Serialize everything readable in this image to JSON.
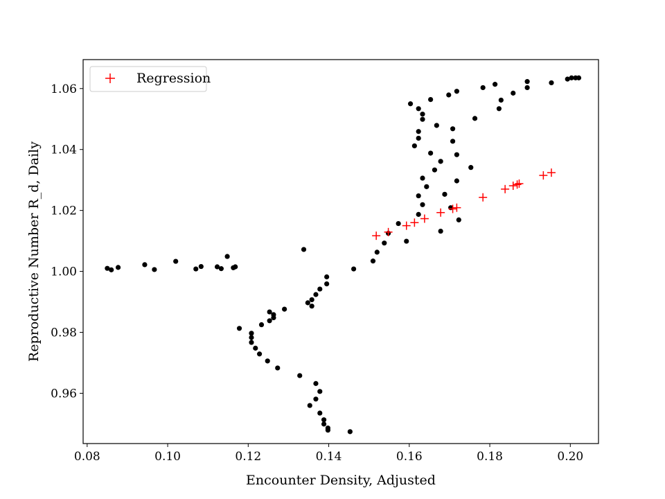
{
  "chart_data": {
    "type": "scatter",
    "title": "",
    "xlabel": "Encounter Density, Adjusted",
    "ylabel": "Reproductive Number R_d, Daily",
    "xlim": [
      0.079,
      0.207
    ],
    "ylim": [
      0.9435,
      1.0695
    ],
    "xticks": [
      0.08,
      0.1,
      0.12,
      0.14,
      0.16,
      0.18,
      0.2
    ],
    "xtick_labels": [
      "0.08",
      "0.10",
      "0.12",
      "0.14",
      "0.16",
      "0.18",
      "0.20"
    ],
    "yticks": [
      0.96,
      0.98,
      1.0,
      1.02,
      1.04,
      1.06
    ],
    "ytick_labels": [
      "0.96",
      "0.98",
      "1.00",
      "1.02",
      "1.04",
      "1.06"
    ],
    "grid": false,
    "legend": {
      "position": "top-left",
      "entries": [
        "Regression"
      ]
    },
    "series": [
      {
        "marker": "dot",
        "color": "#000000",
        "points": [
          [
            0.085,
            1.001
          ],
          [
            0.086,
            1.0005
          ],
          [
            0.0877,
            1.0013
          ],
          [
            0.0943,
            1.0022
          ],
          [
            0.0967,
            1.0006
          ],
          [
            0.102,
            1.0033
          ],
          [
            0.107,
            1.0008
          ],
          [
            0.1083,
            1.0016
          ],
          [
            0.1123,
            1.0015
          ],
          [
            0.1133,
            1.0009
          ],
          [
            0.1148,
            1.0049
          ],
          [
            0.1163,
            1.0012
          ],
          [
            0.1168,
            1.0015
          ],
          [
            0.1338,
            1.0072
          ],
          [
            0.1462,
            1.0008
          ],
          [
            0.1395,
            0.9982
          ],
          [
            0.1395,
            0.9959
          ],
          [
            0.1378,
            0.9942
          ],
          [
            0.1368,
            0.9924
          ],
          [
            0.1358,
            0.9907
          ],
          [
            0.1348,
            0.9897
          ],
          [
            0.1358,
            0.9886
          ],
          [
            0.129,
            0.9876
          ],
          [
            0.1253,
            0.9867
          ],
          [
            0.1263,
            0.9858
          ],
          [
            0.1253,
            0.9838
          ],
          [
            0.1263,
            0.9848
          ],
          [
            0.1233,
            0.9825
          ],
          [
            0.1178,
            0.9813
          ],
          [
            0.1208,
            0.9797
          ],
          [
            0.1208,
            0.9783
          ],
          [
            0.1208,
            0.9767
          ],
          [
            0.1218,
            0.9748
          ],
          [
            0.1228,
            0.9729
          ],
          [
            0.1248,
            0.9706
          ],
          [
            0.1273,
            0.9683
          ],
          [
            0.1328,
            0.9658
          ],
          [
            0.1368,
            0.9632
          ],
          [
            0.1378,
            0.9606
          ],
          [
            0.1368,
            0.9581
          ],
          [
            0.1353,
            0.956
          ],
          [
            0.1378,
            0.9535
          ],
          [
            0.1388,
            0.9513
          ],
          [
            0.1388,
            0.9499
          ],
          [
            0.1398,
            0.9486
          ],
          [
            0.1398,
            0.9479
          ],
          [
            0.1453,
            0.9474
          ],
          [
            0.151,
            1.0034
          ],
          [
            0.152,
            1.0063
          ],
          [
            0.1538,
            1.0093
          ],
          [
            0.1548,
            1.0125
          ],
          [
            0.1573,
            1.0157
          ],
          [
            0.1593,
            1.0099
          ],
          [
            0.1623,
            1.0187
          ],
          [
            0.1633,
            1.0219
          ],
          [
            0.1623,
            1.0248
          ],
          [
            0.1643,
            1.0278
          ],
          [
            0.1633,
            1.0306
          ],
          [
            0.1663,
            1.0333
          ],
          [
            0.1678,
            1.0361
          ],
          [
            0.1653,
            1.0388
          ],
          [
            0.1613,
            1.0412
          ],
          [
            0.1623,
            1.0437
          ],
          [
            0.1623,
            1.0459
          ],
          [
            0.1668,
            1.0479
          ],
          [
            0.1633,
            1.0499
          ],
          [
            0.1633,
            1.0516
          ],
          [
            0.1623,
            1.0534
          ],
          [
            0.1603,
            1.055
          ],
          [
            0.1653,
            1.0564
          ],
          [
            0.1678,
            1.0132
          ],
          [
            0.1703,
            1.0209
          ],
          [
            0.1723,
            1.0169
          ],
          [
            0.1688,
            1.0253
          ],
          [
            0.1718,
            1.0297
          ],
          [
            0.1753,
            1.0341
          ],
          [
            0.1718,
            1.0383
          ],
          [
            0.1708,
            1.0427
          ],
          [
            0.1708,
            1.0468
          ],
          [
            0.1763,
            1.0502
          ],
          [
            0.1698,
            1.0579
          ],
          [
            0.1718,
            1.0591
          ],
          [
            0.1783,
            1.0603
          ],
          [
            0.1813,
            1.0614
          ],
          [
            0.1823,
            1.0534
          ],
          [
            0.1828,
            1.0562
          ],
          [
            0.1858,
            1.0585
          ],
          [
            0.1893,
            1.0603
          ],
          [
            0.1893,
            1.0623
          ],
          [
            0.1953,
            1.0619
          ],
          [
            0.1993,
            1.0631
          ],
          [
            0.2003,
            1.0635
          ],
          [
            0.2013,
            1.0635
          ],
          [
            0.2021,
            1.0635
          ]
        ]
      },
      {
        "name": "Regression",
        "marker": "plus",
        "color": "#ff0000",
        "points": [
          [
            0.1518,
            1.0117
          ],
          [
            0.1548,
            1.0129
          ],
          [
            0.1593,
            1.015
          ],
          [
            0.1613,
            1.016
          ],
          [
            0.1638,
            1.0173
          ],
          [
            0.1678,
            1.0193
          ],
          [
            0.1708,
            1.0205
          ],
          [
            0.1718,
            1.0209
          ],
          [
            0.1783,
            1.0243
          ],
          [
            0.1838,
            1.027
          ],
          [
            0.1858,
            1.0281
          ],
          [
            0.1868,
            1.0285
          ],
          [
            0.1873,
            1.0288
          ],
          [
            0.1933,
            1.0315
          ],
          [
            0.1953,
            1.0324
          ]
        ]
      }
    ]
  }
}
